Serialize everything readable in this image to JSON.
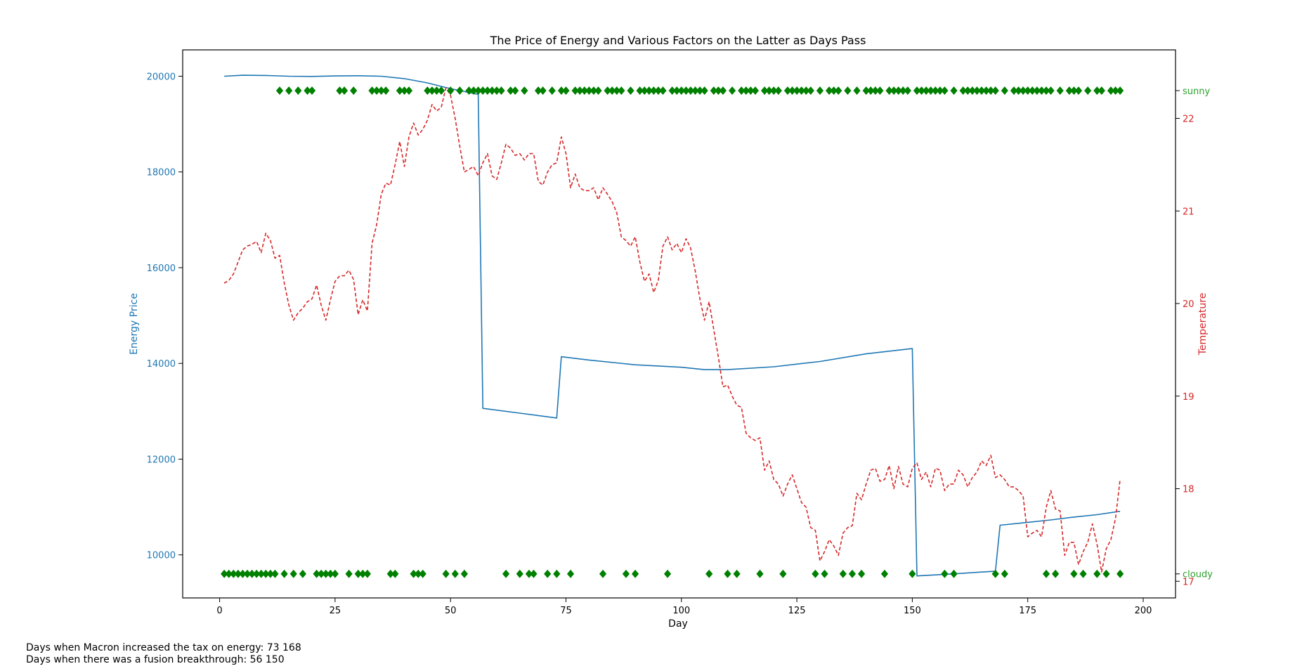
{
  "chart_data": {
    "type": "line",
    "title": "The Price of Energy and Various Factors on the Latter as Days Pass",
    "xlabel": "Day",
    "xlim": [
      -8,
      207
    ],
    "xticks": [
      0,
      25,
      50,
      75,
      100,
      125,
      150,
      175,
      200
    ],
    "grid": false,
    "left_axis": {
      "label": "Energy Price",
      "color": "#1f77b4",
      "ylim": [
        9100,
        20550
      ],
      "ticks": [
        10000,
        12000,
        14000,
        16000,
        18000,
        20000
      ]
    },
    "right_axis": {
      "label": "Temperature",
      "color": "#d62728",
      "ylim": [
        16.82,
        22.74
      ],
      "ticks": [
        17,
        18,
        19,
        20,
        21,
        22
      ],
      "categorical": {
        "color": "#2ca02c",
        "labels": [
          {
            "text": "sunny",
            "value": 22.3
          },
          {
            "text": "cloudy",
            "value": 17.08
          }
        ]
      }
    },
    "series": [
      {
        "axis": "left",
        "style": "solid",
        "color": "#1f77b4",
        "points": [
          [
            1,
            20000
          ],
          [
            5,
            20020
          ],
          [
            10,
            20015
          ],
          [
            15,
            20000
          ],
          [
            20,
            19995
          ],
          [
            25,
            20005
          ],
          [
            30,
            20010
          ],
          [
            35,
            20000
          ],
          [
            40,
            19950
          ],
          [
            45,
            19860
          ],
          [
            50,
            19740
          ],
          [
            56,
            19620
          ],
          [
            57,
            13060
          ],
          [
            65,
            12960
          ],
          [
            73,
            12860
          ],
          [
            74,
            14140
          ],
          [
            80,
            14070
          ],
          [
            90,
            13970
          ],
          [
            100,
            13920
          ],
          [
            105,
            13870
          ],
          [
            110,
            13870
          ],
          [
            120,
            13930
          ],
          [
            130,
            14040
          ],
          [
            140,
            14200
          ],
          [
            150,
            14310
          ],
          [
            151,
            9560
          ],
          [
            160,
            9610
          ],
          [
            168,
            9660
          ],
          [
            169,
            10620
          ],
          [
            175,
            10680
          ],
          [
            180,
            10730
          ],
          [
            185,
            10790
          ],
          [
            190,
            10840
          ],
          [
            195,
            10910
          ]
        ]
      },
      {
        "axis": "right",
        "style": "dashed",
        "color": "#d62728",
        "points": [
          [
            1,
            20.22
          ],
          [
            2,
            20.25
          ],
          [
            3,
            20.32
          ],
          [
            4,
            20.45
          ],
          [
            5,
            20.58
          ],
          [
            6,
            20.62
          ],
          [
            7,
            20.64
          ],
          [
            8,
            20.67
          ],
          [
            9,
            20.55
          ],
          [
            10,
            20.76
          ],
          [
            11,
            20.68
          ],
          [
            12,
            20.49
          ],
          [
            13,
            20.52
          ],
          [
            14,
            20.22
          ],
          [
            15,
            19.98
          ],
          [
            16,
            19.82
          ],
          [
            17,
            19.9
          ],
          [
            18,
            19.95
          ],
          [
            19,
            20.02
          ],
          [
            20,
            20.05
          ],
          [
            21,
            20.2
          ],
          [
            22,
            19.98
          ],
          [
            23,
            19.82
          ],
          [
            24,
            20.04
          ],
          [
            25,
            20.24
          ],
          [
            26,
            20.3
          ],
          [
            27,
            20.3
          ],
          [
            28,
            20.36
          ],
          [
            29,
            20.26
          ],
          [
            30,
            19.88
          ],
          [
            31,
            20.04
          ],
          [
            32,
            19.92
          ],
          [
            33,
            20.65
          ],
          [
            34,
            20.85
          ],
          [
            35,
            21.18
          ],
          [
            36,
            21.3
          ],
          [
            37,
            21.28
          ],
          [
            38,
            21.5
          ],
          [
            39,
            21.75
          ],
          [
            40,
            21.48
          ],
          [
            41,
            21.8
          ],
          [
            42,
            21.95
          ],
          [
            43,
            21.82
          ],
          [
            44,
            21.88
          ],
          [
            45,
            21.98
          ],
          [
            46,
            22.15
          ],
          [
            47,
            22.08
          ],
          [
            48,
            22.12
          ],
          [
            49,
            22.33
          ],
          [
            50,
            22.25
          ],
          [
            51,
            22.0
          ],
          [
            52,
            21.7
          ],
          [
            53,
            21.42
          ],
          [
            54,
            21.45
          ],
          [
            55,
            21.48
          ],
          [
            56,
            21.38
          ],
          [
            57,
            21.52
          ],
          [
            58,
            21.62
          ],
          [
            59,
            21.38
          ],
          [
            60,
            21.34
          ],
          [
            61,
            21.52
          ],
          [
            62,
            21.72
          ],
          [
            63,
            21.68
          ],
          [
            64,
            21.6
          ],
          [
            65,
            21.62
          ],
          [
            66,
            21.55
          ],
          [
            67,
            21.62
          ],
          [
            68,
            21.62
          ],
          [
            69,
            21.32
          ],
          [
            70,
            21.28
          ],
          [
            71,
            21.42
          ],
          [
            72,
            21.5
          ],
          [
            73,
            21.52
          ],
          [
            74,
            21.8
          ],
          [
            75,
            21.62
          ],
          [
            76,
            21.25
          ],
          [
            77,
            21.4
          ],
          [
            78,
            21.25
          ],
          [
            79,
            21.22
          ],
          [
            80,
            21.22
          ],
          [
            81,
            21.25
          ],
          [
            82,
            21.12
          ],
          [
            83,
            21.25
          ],
          [
            84,
            21.18
          ],
          [
            85,
            21.1
          ],
          [
            86,
            20.98
          ],
          [
            87,
            20.72
          ],
          [
            88,
            20.68
          ],
          [
            89,
            20.62
          ],
          [
            90,
            20.72
          ],
          [
            91,
            20.45
          ],
          [
            92,
            20.24
          ],
          [
            93,
            20.32
          ],
          [
            94,
            20.12
          ],
          [
            95,
            20.25
          ],
          [
            96,
            20.62
          ],
          [
            97,
            20.72
          ],
          [
            98,
            20.58
          ],
          [
            99,
            20.65
          ],
          [
            100,
            20.55
          ],
          [
            101,
            20.7
          ],
          [
            102,
            20.6
          ],
          [
            103,
            20.35
          ],
          [
            104,
            20.05
          ],
          [
            105,
            19.82
          ],
          [
            106,
            20.02
          ],
          [
            107,
            19.72
          ],
          [
            108,
            19.42
          ],
          [
            109,
            19.1
          ],
          [
            110,
            19.12
          ],
          [
            111,
            19.0
          ],
          [
            112,
            18.9
          ],
          [
            113,
            18.88
          ],
          [
            114,
            18.6
          ],
          [
            115,
            18.55
          ],
          [
            116,
            18.52
          ],
          [
            117,
            18.55
          ],
          [
            118,
            18.2
          ],
          [
            119,
            18.3
          ],
          [
            120,
            18.1
          ],
          [
            121,
            18.05
          ],
          [
            122,
            17.92
          ],
          [
            123,
            18.05
          ],
          [
            124,
            18.15
          ],
          [
            125,
            18.0
          ],
          [
            126,
            17.85
          ],
          [
            127,
            17.8
          ],
          [
            128,
            17.58
          ],
          [
            129,
            17.55
          ],
          [
            130,
            17.22
          ],
          [
            131,
            17.32
          ],
          [
            132,
            17.45
          ],
          [
            133,
            17.38
          ],
          [
            134,
            17.28
          ],
          [
            135,
            17.52
          ],
          [
            136,
            17.58
          ],
          [
            137,
            17.6
          ],
          [
            138,
            17.95
          ],
          [
            139,
            17.88
          ],
          [
            140,
            18.05
          ],
          [
            141,
            18.2
          ],
          [
            142,
            18.22
          ],
          [
            143,
            18.08
          ],
          [
            144,
            18.1
          ],
          [
            145,
            18.25
          ],
          [
            146,
            18.0
          ],
          [
            147,
            18.24
          ],
          [
            148,
            18.05
          ],
          [
            149,
            18.02
          ],
          [
            150,
            18.22
          ],
          [
            151,
            18.28
          ],
          [
            152,
            18.1
          ],
          [
            153,
            18.18
          ],
          [
            154,
            18.02
          ],
          [
            155,
            18.22
          ],
          [
            156,
            18.2
          ],
          [
            157,
            17.98
          ],
          [
            158,
            18.05
          ],
          [
            159,
            18.05
          ],
          [
            160,
            18.2
          ],
          [
            161,
            18.15
          ],
          [
            162,
            18.02
          ],
          [
            163,
            18.12
          ],
          [
            164,
            18.18
          ],
          [
            165,
            18.3
          ],
          [
            166,
            18.25
          ],
          [
            167,
            18.36
          ],
          [
            168,
            18.12
          ],
          [
            169,
            18.15
          ],
          [
            170,
            18.1
          ],
          [
            171,
            18.02
          ],
          [
            172,
            18.02
          ],
          [
            173,
            17.98
          ],
          [
            174,
            17.92
          ],
          [
            175,
            17.48
          ],
          [
            176,
            17.52
          ],
          [
            177,
            17.55
          ],
          [
            178,
            17.48
          ],
          [
            179,
            17.8
          ],
          [
            180,
            17.98
          ],
          [
            181,
            17.78
          ],
          [
            182,
            17.76
          ],
          [
            183,
            17.28
          ],
          [
            184,
            17.42
          ],
          [
            185,
            17.42
          ],
          [
            186,
            17.18
          ],
          [
            187,
            17.32
          ],
          [
            188,
            17.42
          ],
          [
            189,
            17.62
          ],
          [
            190,
            17.4
          ],
          [
            191,
            17.1
          ],
          [
            192,
            17.35
          ],
          [
            193,
            17.45
          ],
          [
            194,
            17.68
          ],
          [
            195,
            18.1
          ]
        ]
      },
      {
        "axis": "right",
        "style": "markers",
        "marker": "diamond",
        "color": "#008000",
        "name": "sunny",
        "level": 22.3,
        "days": [
          13,
          15,
          17,
          19,
          20,
          26,
          27,
          29,
          33,
          34,
          35,
          36,
          39,
          40,
          41,
          45,
          46,
          47,
          48,
          50,
          52,
          54,
          55,
          56,
          57,
          58,
          59,
          60,
          61,
          63,
          64,
          66,
          69,
          70,
          72,
          74,
          75,
          77,
          78,
          79,
          80,
          81,
          82,
          84,
          85,
          86,
          87,
          89,
          91,
          92,
          93,
          94,
          95,
          96,
          98,
          99,
          100,
          101,
          102,
          103,
          104,
          105,
          107,
          108,
          109,
          111,
          113,
          114,
          115,
          116,
          118,
          119,
          120,
          121,
          123,
          124,
          125,
          126,
          127,
          128,
          130,
          132,
          133,
          134,
          136,
          138,
          140,
          141,
          142,
          143,
          145,
          146,
          147,
          148,
          149,
          151,
          152,
          153,
          154,
          155,
          156,
          157,
          159,
          161,
          162,
          163,
          164,
          165,
          166,
          167,
          168,
          170,
          172,
          173,
          174,
          175,
          176,
          177,
          178,
          179,
          180,
          182,
          184,
          185,
          186,
          188,
          190,
          191,
          193,
          194,
          195
        ]
      },
      {
        "axis": "right",
        "style": "markers",
        "marker": "diamond",
        "color": "#008000",
        "name": "cloudy",
        "level": 17.08,
        "days": [
          1,
          2,
          3,
          4,
          5,
          6,
          7,
          8,
          9,
          10,
          11,
          12,
          14,
          16,
          18,
          21,
          22,
          23,
          24,
          25,
          28,
          30,
          31,
          32,
          37,
          38,
          42,
          43,
          44,
          49,
          51,
          53,
          62,
          65,
          67,
          68,
          71,
          73,
          76,
          83,
          88,
          90,
          97,
          106,
          110,
          112,
          117,
          122,
          129,
          131,
          135,
          137,
          139,
          144,
          150,
          157,
          159,
          168,
          170,
          179,
          181,
          185,
          187,
          190,
          192,
          195
        ]
      }
    ]
  },
  "notes": {
    "tax_line": "Days when Macron increased the tax on energy: 73 168",
    "fusion_line": "Days when there was a fusion breakthrough: 56 150"
  }
}
